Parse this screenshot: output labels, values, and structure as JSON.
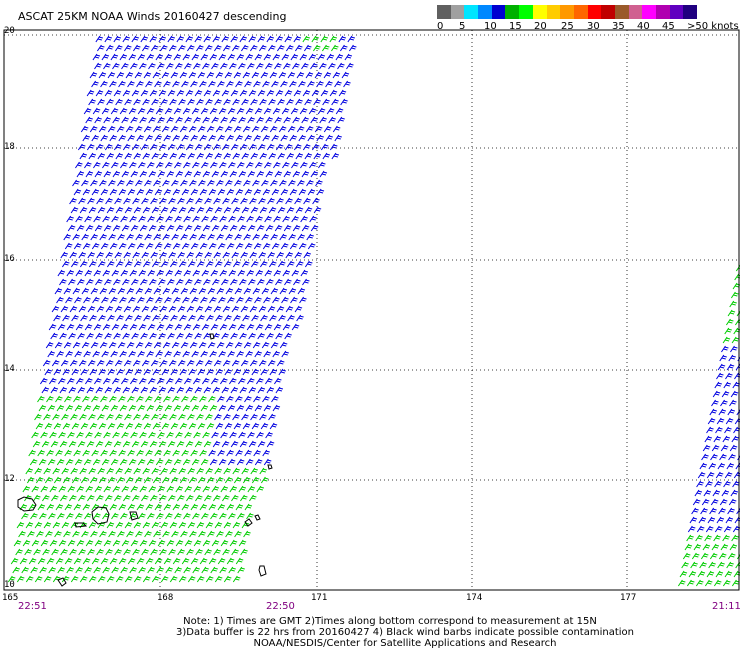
{
  "title": "ASCAT 25KM NOAA Winds 20160427 descending",
  "legend": {
    "colors": [
      "#606060",
      "#a0a0a0",
      "#00e5ff",
      "#0088ff",
      "#0000d0",
      "#00b000",
      "#00ff00",
      "#ffff00",
      "#ffcc00",
      "#ff9900",
      "#ff6600",
      "#ff0000",
      "#c00000",
      "#9a5a2a",
      "#d06090",
      "#ff00ff",
      "#b000b0",
      "#6000c0",
      "#200080"
    ],
    "labels": [
      "0",
      "5",
      "10",
      "15",
      "20",
      "25",
      "30",
      "35",
      "40",
      "45",
      ">50 knots"
    ]
  },
  "axes": {
    "lat_labels": [
      "20",
      "18",
      "16",
      "14",
      "12",
      "10"
    ],
    "lon_labels": [
      "165",
      "168",
      "171",
      "174",
      "177"
    ]
  },
  "times": {
    "left": "22:51",
    "middle": "22:50",
    "right": "21:11"
  },
  "notes": {
    "line1": "Note: 1) Times are GMT 2)Times along bottom correspond to measurement at 15N",
    "line2": "3)Data buffer is 22 hrs from 20160427 4) Black wind barbs indicate possible contamination",
    "line3": "NOAA/NESDIS/Center for Satellite Applications and Research"
  },
  "wind_colors": {
    "low": "#00cc00",
    "mid": "#0000e0"
  }
}
